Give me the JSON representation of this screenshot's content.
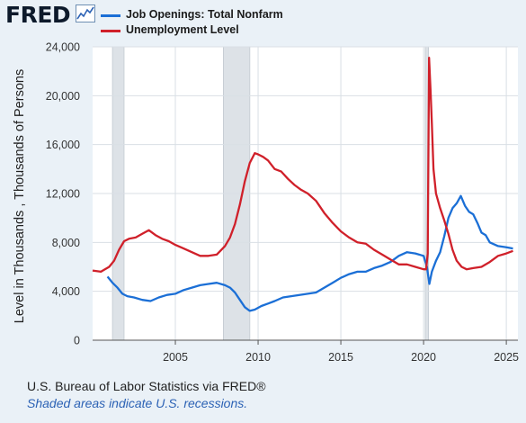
{
  "header": {
    "logo_text": "FRED",
    "trend_icon": "line-chart-icon"
  },
  "legend": [
    {
      "label": "Job Openings: Total Nonfarm",
      "color": "#1b6fd6"
    },
    {
      "label": "Unemployment Level",
      "color": "#d0202a"
    }
  ],
  "footer": {
    "source": "U.S. Bureau of Labor Statistics via FRED®",
    "recession_note": "Shaded areas indicate U.S. recessions."
  },
  "chart_data": {
    "type": "line",
    "ylabel": "Level in Thousands , Thousands of Persons",
    "xlabel": "",
    "xlim": [
      2000.0,
      2025.7
    ],
    "ylim": [
      0,
      24000
    ],
    "x_ticks": [
      2005,
      2010,
      2015,
      2020,
      2025
    ],
    "x_tick_labels": [
      "2005",
      "2010",
      "2015",
      "2020",
      "2025"
    ],
    "y_ticks": [
      0,
      4000,
      8000,
      12000,
      16000,
      20000,
      24000
    ],
    "y_tick_labels": [
      "0",
      "4,000",
      "8,000",
      "12,000",
      "16,000",
      "20,000",
      "24,000"
    ],
    "grid": true,
    "legend_position": "top-left",
    "recessions": [
      [
        2001.2,
        2001.9
      ],
      [
        2007.9,
        2009.5
      ],
      [
        2020.1,
        2020.3
      ]
    ],
    "series": [
      {
        "name": "Job Openings: Total Nonfarm",
        "color": "#1b6fd6",
        "x": [
          2000.9,
          2001.2,
          2001.5,
          2001.8,
          2002.1,
          2002.5,
          2003.0,
          2003.5,
          2004.0,
          2004.5,
          2005.0,
          2005.5,
          2006.0,
          2006.5,
          2007.0,
          2007.5,
          2008.0,
          2008.3,
          2008.6,
          2008.9,
          2009.2,
          2009.5,
          2009.8,
          2010.2,
          2010.6,
          2011.0,
          2011.5,
          2012.0,
          2012.5,
          2013.0,
          2013.5,
          2014.0,
          2014.5,
          2015.0,
          2015.5,
          2016.0,
          2016.5,
          2017.0,
          2017.5,
          2018.0,
          2018.5,
          2019.0,
          2019.5,
          2020.0,
          2020.2,
          2020.35,
          2020.5,
          2020.75,
          2021.0,
          2021.25,
          2021.5,
          2021.75,
          2022.0,
          2022.25,
          2022.5,
          2022.75,
          2023.0,
          2023.25,
          2023.5,
          2023.75,
          2024.0,
          2024.5,
          2025.0,
          2025.4
        ],
        "y": [
          5200,
          4700,
          4300,
          3800,
          3600,
          3500,
          3300,
          3200,
          3500,
          3700,
          3800,
          4100,
          4300,
          4500,
          4600,
          4700,
          4500,
          4300,
          3900,
          3300,
          2700,
          2400,
          2500,
          2800,
          3000,
          3200,
          3500,
          3600,
          3700,
          3800,
          3900,
          4300,
          4700,
          5100,
          5400,
          5600,
          5600,
          5900,
          6100,
          6400,
          6900,
          7200,
          7100,
          6900,
          6000,
          4600,
          5600,
          6500,
          7200,
          8500,
          10000,
          10800,
          11200,
          11800,
          11000,
          10500,
          10300,
          9600,
          8800,
          8600,
          8000,
          7700,
          7600,
          7500
        ]
      },
      {
        "name": "Unemployment Level",
        "color": "#d0202a",
        "x": [
          2000.0,
          2000.5,
          2001.0,
          2001.3,
          2001.6,
          2001.9,
          2002.2,
          2002.6,
          2003.0,
          2003.4,
          2003.8,
          2004.2,
          2004.6,
          2005.0,
          2005.5,
          2006.0,
          2006.5,
          2007.0,
          2007.5,
          2008.0,
          2008.3,
          2008.6,
          2008.9,
          2009.2,
          2009.5,
          2009.8,
          2010.0,
          2010.3,
          2010.6,
          2011.0,
          2011.4,
          2011.8,
          2012.2,
          2012.6,
          2013.0,
          2013.5,
          2014.0,
          2014.5,
          2015.0,
          2015.5,
          2016.0,
          2016.5,
          2017.0,
          2017.5,
          2018.0,
          2018.5,
          2019.0,
          2019.5,
          2020.0,
          2020.15,
          2020.25,
          2020.33,
          2020.42,
          2020.5,
          2020.6,
          2020.75,
          2021.0,
          2021.25,
          2021.5,
          2021.75,
          2022.0,
          2022.3,
          2022.6,
          2023.0,
          2023.5,
          2024.0,
          2024.5,
          2025.0,
          2025.4
        ],
        "y": [
          5700,
          5600,
          6000,
          6500,
          7400,
          8100,
          8300,
          8400,
          8700,
          9000,
          8600,
          8300,
          8100,
          7800,
          7500,
          7200,
          6900,
          6900,
          7000,
          7700,
          8400,
          9500,
          11100,
          13000,
          14500,
          15300,
          15200,
          15000,
          14700,
          14000,
          13800,
          13200,
          12700,
          12300,
          12000,
          11400,
          10400,
          9600,
          8900,
          8400,
          8000,
          7900,
          7400,
          7000,
          6600,
          6200,
          6200,
          6000,
          5800,
          5800,
          7100,
          23100,
          20500,
          17700,
          14000,
          12000,
          10800,
          9800,
          8700,
          7400,
          6500,
          6000,
          5800,
          5900,
          6000,
          6400,
          6900,
          7100,
          7300
        ]
      }
    ]
  }
}
